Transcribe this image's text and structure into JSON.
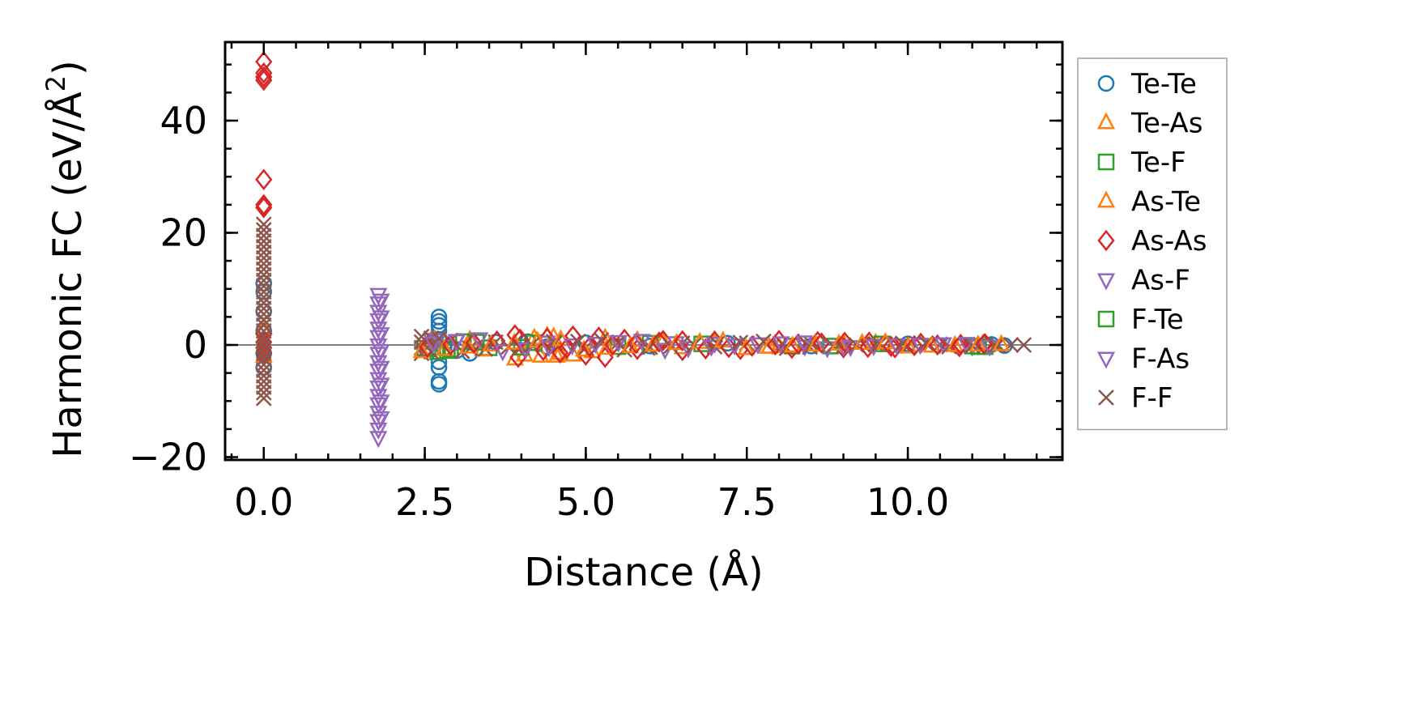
{
  "chart_data": {
    "type": "scatter",
    "title": "",
    "xlabel": "Distance (Å)",
    "ylabel_main": "Harmonic FC (eV/Å",
    "ylabel_sup": "2",
    "ylabel_close": ")",
    "xlim": [
      -0.6,
      12.4
    ],
    "ylim": [
      -20.5,
      54
    ],
    "xticks": [
      0.0,
      2.5,
      5.0,
      7.5,
      10.0
    ],
    "xtick_labels": [
      "0.0",
      "2.5",
      "5.0",
      "7.5",
      "10.0"
    ],
    "xminor_step": 0.5,
    "yticks": [
      -20,
      0,
      20,
      40
    ],
    "ytick_labels": [
      "−20",
      "0",
      "20",
      "40"
    ],
    "yminor_step": 5,
    "zero_line": 0,
    "legend_position": "outside-right",
    "series": [
      {
        "name": "Te-Te",
        "marker": "circle",
        "color": "#1f77b4",
        "points": [
          [
            0.0,
            11.0
          ],
          [
            0.0,
            9.5
          ],
          [
            0.0,
            6.0
          ],
          [
            0.0,
            2.5
          ],
          [
            0.0,
            -1.5
          ],
          [
            0.0,
            -4.0
          ],
          [
            2.72,
            5.0
          ],
          [
            2.72,
            4.2
          ],
          [
            2.72,
            3.5
          ],
          [
            2.72,
            2.5
          ],
          [
            2.72,
            1.0
          ],
          [
            2.72,
            -3.0
          ],
          [
            2.72,
            -4.0
          ],
          [
            2.72,
            -6.5
          ],
          [
            2.72,
            -7.0
          ],
          [
            2.8,
            -0.5
          ],
          [
            3.0,
            -1.0
          ],
          [
            3.2,
            -1.5
          ],
          [
            3.6,
            0.5
          ],
          [
            4.1,
            0.6
          ],
          [
            4.4,
            -0.3
          ],
          [
            5.0,
            0.4
          ],
          [
            6.0,
            -0.2
          ],
          [
            7.2,
            0.3
          ],
          [
            8.5,
            -0.2
          ],
          [
            10.0,
            0.2
          ],
          [
            11.3,
            0.1
          ],
          [
            11.5,
            -0.1
          ]
        ]
      },
      {
        "name": "Te-As",
        "marker": "triangle-up",
        "color": "#ff7f0e",
        "points": [
          [
            0.0,
            3.0
          ],
          [
            0.0,
            -2.0
          ],
          [
            2.6,
            0.8
          ],
          [
            2.8,
            -0.8
          ],
          [
            3.2,
            0.9
          ],
          [
            3.9,
            -2.5
          ],
          [
            4.05,
            -1.8
          ],
          [
            4.2,
            1.2
          ],
          [
            4.3,
            -2.0
          ],
          [
            4.5,
            1.4
          ],
          [
            4.6,
            -1.5
          ],
          [
            4.8,
            -1.8
          ],
          [
            5.3,
            1.2
          ],
          [
            5.8,
            0.8
          ],
          [
            6.5,
            -0.5
          ],
          [
            7.0,
            0.4
          ],
          [
            8.0,
            -0.3
          ],
          [
            9.5,
            0.3
          ],
          [
            10.8,
            -0.2
          ]
        ]
      },
      {
        "name": "Te-F",
        "marker": "square",
        "color": "#2ca02c",
        "points": [
          [
            2.5,
            -0.6
          ],
          [
            2.7,
            -1.2
          ],
          [
            2.9,
            -0.8
          ],
          [
            3.1,
            0.6
          ],
          [
            3.5,
            -0.5
          ],
          [
            4.2,
            0.4
          ],
          [
            5.5,
            -0.3
          ],
          [
            6.8,
            0.2
          ],
          [
            8.2,
            -0.2
          ],
          [
            9.6,
            0.2
          ],
          [
            11.0,
            -0.2
          ],
          [
            11.2,
            -0.3
          ]
        ]
      },
      {
        "name": "As-Te",
        "marker": "triangle-up",
        "color": "#ff7f0e",
        "points": [
          [
            2.65,
            0.9
          ],
          [
            3.4,
            -0.9
          ],
          [
            4.4,
            1.6
          ],
          [
            4.55,
            -2.0
          ],
          [
            5.1,
            -1.2
          ],
          [
            6.2,
            0.6
          ],
          [
            7.8,
            -0.4
          ],
          [
            9.0,
            0.3
          ]
        ]
      },
      {
        "name": "As-As",
        "marker": "diamond",
        "color": "#d62728",
        "points": [
          [
            0.0,
            50.5
          ],
          [
            0.0,
            48.5
          ],
          [
            0.0,
            47.8
          ],
          [
            0.0,
            47.2
          ],
          [
            0.0,
            29.5
          ],
          [
            0.0,
            25.0
          ],
          [
            0.0,
            24.5
          ],
          [
            0.0,
            2.0
          ],
          [
            0.0,
            0.5
          ],
          [
            0.0,
            -0.5
          ],
          [
            0.0,
            -1.5
          ],
          [
            3.9,
            1.8
          ],
          [
            3.95,
            -2.2
          ],
          [
            4.4,
            1.2
          ],
          [
            4.6,
            -1.4
          ],
          [
            4.8,
            1.6
          ],
          [
            5.0,
            -1.8
          ],
          [
            5.2,
            1.4
          ],
          [
            5.3,
            -2.2
          ],
          [
            5.6,
            1.0
          ],
          [
            5.8,
            -0.8
          ],
          [
            6.2,
            0.8
          ],
          [
            6.5,
            -1.0
          ],
          [
            7.0,
            0.7
          ],
          [
            7.4,
            -0.8
          ],
          [
            8.0,
            0.8
          ],
          [
            8.2,
            -0.6
          ],
          [
            8.6,
            0.6
          ],
          [
            9.0,
            -0.5
          ],
          [
            9.4,
            0.5
          ],
          [
            9.8,
            -0.5
          ],
          [
            10.2,
            0.3
          ],
          [
            10.8,
            -0.3
          ],
          [
            11.2,
            0.2
          ]
        ]
      },
      {
        "name": "As-F",
        "marker": "triangle-down",
        "color": "#9467bd",
        "points": [
          [
            1.78,
            9.0
          ],
          [
            1.78,
            7.5
          ],
          [
            1.78,
            6.0
          ],
          [
            1.78,
            4.5
          ],
          [
            1.78,
            3.0
          ],
          [
            1.78,
            1.5
          ],
          [
            1.78,
            0.0
          ],
          [
            1.78,
            -1.5
          ],
          [
            1.78,
            -3.0
          ],
          [
            1.78,
            -4.5
          ],
          [
            1.78,
            -6.0
          ],
          [
            1.78,
            -7.5
          ],
          [
            1.78,
            -9.0
          ],
          [
            1.78,
            -10.5
          ],
          [
            1.78,
            -12.0
          ],
          [
            1.78,
            -13.5
          ],
          [
            1.78,
            -15.0
          ],
          [
            1.78,
            -16.5
          ],
          [
            2.6,
            1.0
          ],
          [
            3.0,
            0.8
          ],
          [
            5.5,
            0.6
          ],
          [
            7.0,
            0.3
          ],
          [
            9.0,
            -0.2
          ],
          [
            11.0,
            -0.2
          ]
        ]
      },
      {
        "name": "F-Te",
        "marker": "square",
        "color": "#2ca02c",
        "points": [
          [
            2.55,
            -0.7
          ],
          [
            2.85,
            -1.0
          ],
          [
            3.3,
            0.5
          ],
          [
            4.0,
            -0.4
          ],
          [
            6.0,
            0.3
          ],
          [
            8.8,
            -0.2
          ],
          [
            11.1,
            -0.3
          ]
        ]
      },
      {
        "name": "F-As",
        "marker": "triangle-down",
        "color": "#9467bd",
        "points": [
          [
            1.82,
            8.0
          ],
          [
            1.82,
            5.0
          ],
          [
            1.82,
            2.0
          ],
          [
            1.82,
            -1.0
          ],
          [
            1.82,
            -4.0
          ],
          [
            1.82,
            -7.0
          ],
          [
            1.82,
            -10.0
          ],
          [
            1.82,
            -13.0
          ],
          [
            2.7,
            0.9
          ],
          [
            4.4,
            0.5
          ],
          [
            6.4,
            0.4
          ],
          [
            8.4,
            -0.2
          ],
          [
            10.5,
            0.2
          ]
        ]
      },
      {
        "name": "F-F",
        "marker": "x",
        "color": "#8c564b",
        "points": [
          [
            0.0,
            21.5
          ],
          [
            0.0,
            20.5
          ],
          [
            0.0,
            19.5
          ],
          [
            0.0,
            18.5
          ],
          [
            0.0,
            17.5
          ],
          [
            0.0,
            16.5
          ],
          [
            0.0,
            15.5
          ],
          [
            0.0,
            14.5
          ],
          [
            0.0,
            13.5
          ],
          [
            0.0,
            12.5
          ],
          [
            0.0,
            11.5
          ],
          [
            0.0,
            10.5
          ],
          [
            0.0,
            9.5
          ],
          [
            0.0,
            8.5
          ],
          [
            0.0,
            7.5
          ],
          [
            0.0,
            6.5
          ],
          [
            0.0,
            5.5
          ],
          [
            0.0,
            4.5
          ],
          [
            0.0,
            3.5
          ],
          [
            0.0,
            2.5
          ],
          [
            0.0,
            1.5
          ],
          [
            0.0,
            0.5
          ],
          [
            0.0,
            -0.5
          ],
          [
            0.0,
            -1.5
          ],
          [
            0.0,
            -2.5
          ],
          [
            0.0,
            -3.5
          ],
          [
            0.0,
            -4.5
          ],
          [
            0.0,
            -5.5
          ],
          [
            0.0,
            -6.5
          ],
          [
            0.0,
            -7.5
          ],
          [
            0.0,
            -8.5
          ],
          [
            0.0,
            -9.5
          ],
          [
            2.45,
            1.5
          ],
          [
            2.45,
            0.5
          ],
          [
            2.45,
            -0.5
          ],
          [
            2.45,
            -1.5
          ],
          [
            2.6,
            1.2
          ],
          [
            2.6,
            -1.2
          ],
          [
            2.9,
            0.8
          ],
          [
            3.2,
            -0.6
          ],
          [
            3.6,
            0.5
          ],
          [
            4.0,
            -0.4
          ],
          [
            4.5,
            0.6
          ],
          [
            5.0,
            -0.5
          ],
          [
            5.5,
            0.4
          ],
          [
            6.0,
            -0.4
          ],
          [
            6.5,
            0.3
          ],
          [
            7.0,
            -0.3
          ],
          [
            7.5,
            0.3
          ],
          [
            8.0,
            -0.3
          ],
          [
            8.5,
            0.2
          ],
          [
            9.0,
            -0.2
          ],
          [
            9.5,
            0.2
          ],
          [
            10.0,
            -0.2
          ],
          [
            10.5,
            0.1
          ],
          [
            11.0,
            -0.1
          ],
          [
            11.4,
            0.0
          ],
          [
            11.6,
            0.0
          ],
          [
            11.8,
            0.0
          ]
        ]
      }
    ]
  }
}
